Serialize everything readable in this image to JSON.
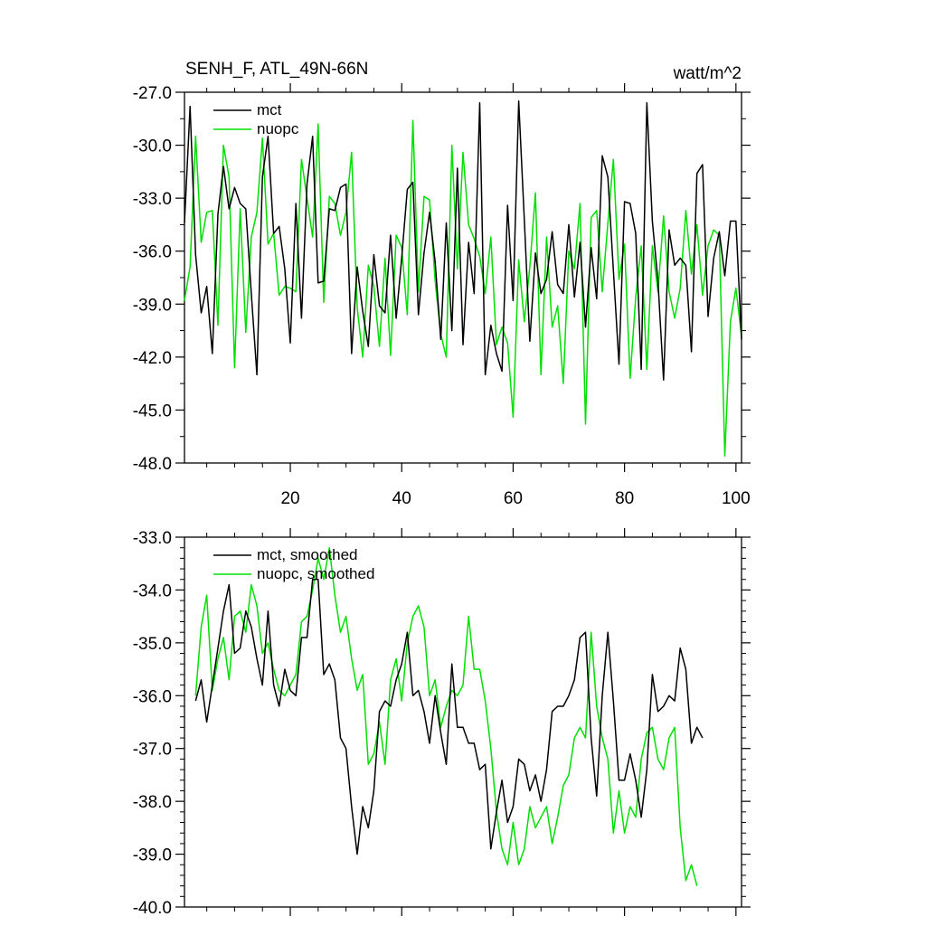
{
  "figure": {
    "title_left": "SENH_F, ATL_49N-66N",
    "title_right": "watt/m^2"
  },
  "chart_data": [
    {
      "type": "line",
      "title": "SENH_F, ATL_49N-66N",
      "units": "watt/m^2",
      "xlim": [
        1,
        101
      ],
      "ylim": [
        -48.0,
        -27.0
      ],
      "x_ticks": [
        20,
        40,
        60,
        80,
        100
      ],
      "x_tick_labels": [
        "20",
        "40",
        "60",
        "80",
        "100"
      ],
      "y_ticks": [
        -27.0,
        -30.0,
        -33.0,
        -36.0,
        -39.0,
        -42.0,
        -45.0,
        -48.0
      ],
      "y_tick_labels": [
        "-27.0",
        "-30.0",
        "-33.0",
        "-36.0",
        "-39.0",
        "-42.0",
        "-45.0",
        "-48.0"
      ],
      "legend_position": "top-left",
      "x_start": 1,
      "series": [
        {
          "name": "mct",
          "color": "#000000",
          "values": [
            -34.4,
            -27.8,
            -36.2,
            -39.5,
            -38.0,
            -41.8,
            -33.9,
            -31.2,
            -33.6,
            -32.4,
            -33.3,
            -33.6,
            -38.4,
            -43.0,
            -31.8,
            -29.5,
            -35.0,
            -34.6,
            -37.0,
            -41.2,
            -33.3,
            -39.8,
            -32.2,
            -29.5,
            -37.8,
            -37.7,
            -33.6,
            -33.7,
            -32.4,
            -32.2,
            -41.8,
            -36.9,
            -39.4,
            -41.4,
            -36.2,
            -39.1,
            -39.5,
            -35.1,
            -39.8,
            -36.4,
            -32.5,
            -32.1,
            -39.6,
            -36.1,
            -33.8,
            -36.6,
            -41.0,
            -34.4,
            -40.5,
            -31.3,
            -41.3,
            -35.5,
            -38.4,
            -27.6,
            -43.0,
            -40.2,
            -41.8,
            -42.8,
            -33.4,
            -38.8,
            -27.5,
            -34.2,
            -41.1,
            -36.1,
            -38.4,
            -37.6,
            -34.9,
            -37.9,
            -38.4,
            -34.5,
            -38.6,
            -35.5,
            -40.3,
            -35.8,
            -38.7,
            -30.6,
            -31.8,
            -37.1,
            -42.4,
            -33.2,
            -33.3,
            -35.0,
            -42.7,
            -27.6,
            -34.3,
            -37.7,
            -43.3,
            -34.8,
            -36.8,
            -36.4,
            -36.8,
            -41.7,
            -31.6,
            -31.1,
            -39.7,
            -36.4,
            -34.9,
            -37.4,
            -34.3,
            -34.3,
            -41.0
          ]
        },
        {
          "name": "nuopc",
          "color": "#00e000",
          "values": [
            -38.8,
            -36.9,
            -29.5,
            -35.5,
            -33.8,
            -33.7,
            -40.2,
            -30.0,
            -31.8,
            -42.6,
            -33.6,
            -40.6,
            -35.2,
            -33.8,
            -29.6,
            -35.6,
            -35.0,
            -38.5,
            -38.0,
            -38.1,
            -38.3,
            -30.8,
            -33.0,
            -35.2,
            -28.8,
            -38.9,
            -32.9,
            -33.3,
            -35.1,
            -33.8,
            -30.4,
            -39.2,
            -42.0,
            -36.8,
            -38.0,
            -41.4,
            -36.4,
            -41.9,
            -35.1,
            -35.8,
            -39.6,
            -28.6,
            -38.3,
            -32.9,
            -33.1,
            -37.7,
            -40.7,
            -42.0,
            -30.0,
            -37.0,
            -30.4,
            -34.5,
            -35.3,
            -36.3,
            -38.4,
            -35.2,
            -41.3,
            -40.3,
            -41.2,
            -45.4,
            -36.5,
            -40.0,
            -36.9,
            -32.7,
            -43.0,
            -35.2,
            -40.3,
            -39.1,
            -43.5,
            -36.0,
            -37.0,
            -33.3,
            -45.8,
            -34.1,
            -33.7,
            -38.3,
            -34.4,
            -30.8,
            -37.6,
            -35.6,
            -43.2,
            -38.6,
            -35.7,
            -42.7,
            -35.7,
            -38.3,
            -34.0,
            -38.3,
            -39.8,
            -38.1,
            -33.7,
            -37.3,
            -34.5,
            -38.5,
            -35.7,
            -34.8,
            -35.1,
            -47.6,
            -40.0,
            -38.1,
            -40.8
          ]
        }
      ]
    },
    {
      "type": "line",
      "xlim": [
        1,
        101
      ],
      "ylim": [
        -40.0,
        -33.0
      ],
      "x_ticks": [
        20,
        40,
        60,
        80,
        100
      ],
      "x_tick_labels": [],
      "y_ticks": [
        -33.0,
        -34.0,
        -35.0,
        -36.0,
        -37.0,
        -38.0,
        -39.0,
        -40.0
      ],
      "y_tick_labels": [
        "-33.0",
        "-34.0",
        "-35.0",
        "-36.0",
        "-37.0",
        "-38.0",
        "-39.0",
        "-40.0"
      ],
      "legend_position": "top-left",
      "x_start": 3,
      "series": [
        {
          "name": "mct, smoothed",
          "color": "#000000",
          "values": [
            -36.1,
            -35.7,
            -36.5,
            -35.8,
            -35.1,
            -34.4,
            -33.9,
            -35.2,
            -35.1,
            -34.4,
            -34.7,
            -35.3,
            -35.8,
            -34.4,
            -35.8,
            -36.2,
            -35.5,
            -35.9,
            -36.0,
            -34.9,
            -34.9,
            -33.8,
            -33.8,
            -35.6,
            -35.4,
            -35.7,
            -36.8,
            -37.0,
            -38.1,
            -39.0,
            -38.1,
            -38.5,
            -37.8,
            -36.3,
            -36.1,
            -36.2,
            -35.7,
            -35.4,
            -34.8,
            -36.0,
            -35.9,
            -36.3,
            -36.9,
            -36.0,
            -36.7,
            -37.3,
            -35.4,
            -36.6,
            -36.6,
            -36.9,
            -36.9,
            -37.4,
            -37.3,
            -38.9,
            -38.2,
            -37.6,
            -38.4,
            -38.1,
            -37.2,
            -37.3,
            -37.8,
            -37.5,
            -38.0,
            -37.4,
            -36.3,
            -36.2,
            -36.2,
            -36.0,
            -35.7,
            -34.9,
            -34.8,
            -36.8,
            -37.9,
            -36.0,
            -34.8,
            -36.1,
            -37.6,
            -37.6,
            -37.1,
            -37.6,
            -38.3,
            -37.4,
            -35.6,
            -36.3,
            -36.2,
            -36.0,
            -36.1,
            -35.1,
            -35.5,
            -36.9,
            -36.6,
            -36.8
          ]
        },
        {
          "name": "nuopc, smoothed",
          "color": "#00e000",
          "values": [
            -36.0,
            -34.7,
            -34.1,
            -35.9,
            -35.3,
            -34.9,
            -35.7,
            -34.5,
            -34.4,
            -34.8,
            -33.9,
            -34.3,
            -35.2,
            -35.0,
            -35.5,
            -35.9,
            -36.0,
            -35.8,
            -35.6,
            -34.6,
            -34.5,
            -34.0,
            -33.4,
            -33.8,
            -33.2,
            -34.1,
            -34.8,
            -34.5,
            -35.3,
            -35.9,
            -35.6,
            -37.3,
            -37.1,
            -36.5,
            -37.3,
            -35.7,
            -35.3,
            -36.1,
            -35.0,
            -34.5,
            -34.3,
            -34.7,
            -36.0,
            -35.7,
            -36.6,
            -36.2,
            -35.9,
            -36.0,
            -35.8,
            -34.5,
            -35.5,
            -35.5,
            -36.1,
            -37.0,
            -38.2,
            -38.9,
            -39.2,
            -38.4,
            -39.2,
            -38.9,
            -38.1,
            -38.5,
            -38.3,
            -38.1,
            -38.8,
            -38.3,
            -37.7,
            -37.5,
            -36.8,
            -36.6,
            -36.8,
            -34.8,
            -36.2,
            -36.8,
            -37.2,
            -38.6,
            -37.8,
            -38.6,
            -38.1,
            -38.3,
            -37.2,
            -36.7,
            -36.6,
            -37.2,
            -37.4,
            -36.8,
            -36.6,
            -38.5,
            -39.5,
            -39.2,
            -39.6
          ]
        }
      ]
    }
  ]
}
